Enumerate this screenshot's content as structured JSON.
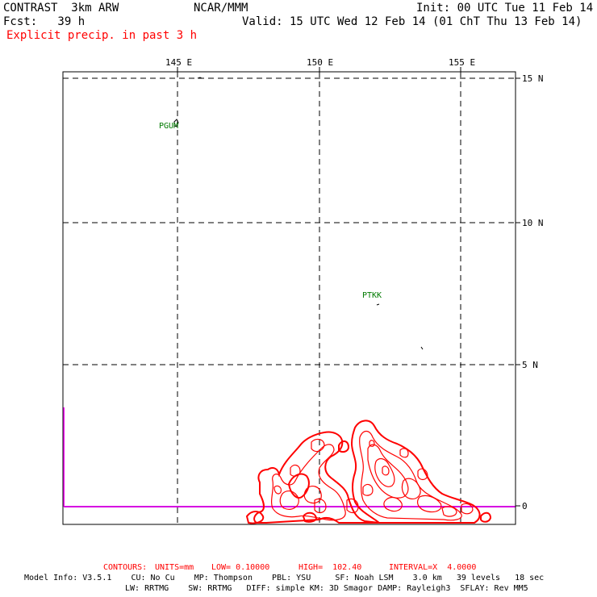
{
  "header": {
    "model": "CONTRAST  3km ARW",
    "center": "NCAR/MMM",
    "init": "Init: 00 UTC Tue 11 Feb 14",
    "fcst": "Fcst:   39 h",
    "valid": "Valid: 15 UTC Wed 12 Feb 14 (01 ChT Thu 13 Feb 14)",
    "field": "Explicit precip. in past 3 h"
  },
  "axes": {
    "lon_labels": [
      "145 E",
      "150 E",
      "155 E"
    ],
    "lat_labels": [
      "15 N",
      "10 N",
      "5 N",
      "0"
    ]
  },
  "stations": [
    {
      "id": "PGUM"
    },
    {
      "id": "PTKK"
    }
  ],
  "contours": {
    "prefix": "CONTOURS:",
    "units": "UNITS=mm",
    "low": "LOW= 0.10000",
    "high": "HIGH=  102.40",
    "interval": "INTERVAL=X  4.0000"
  },
  "model_info": {
    "line1": "Model Info: V3.5.1    CU: No Cu    MP: Thompson    PBL: YSU     SF: Noah LSM    3.0 km   39 levels   18 sec",
    "line2": "LW: RRTMG    SW: RRTMG   DIFF: simple KM: 3D Smagor DAMP: Rayleigh3  SFLAY: Rev MM5"
  },
  "colors": {
    "contour": "#ff0000",
    "station": "#007a00",
    "frame": "#ff00ff"
  }
}
